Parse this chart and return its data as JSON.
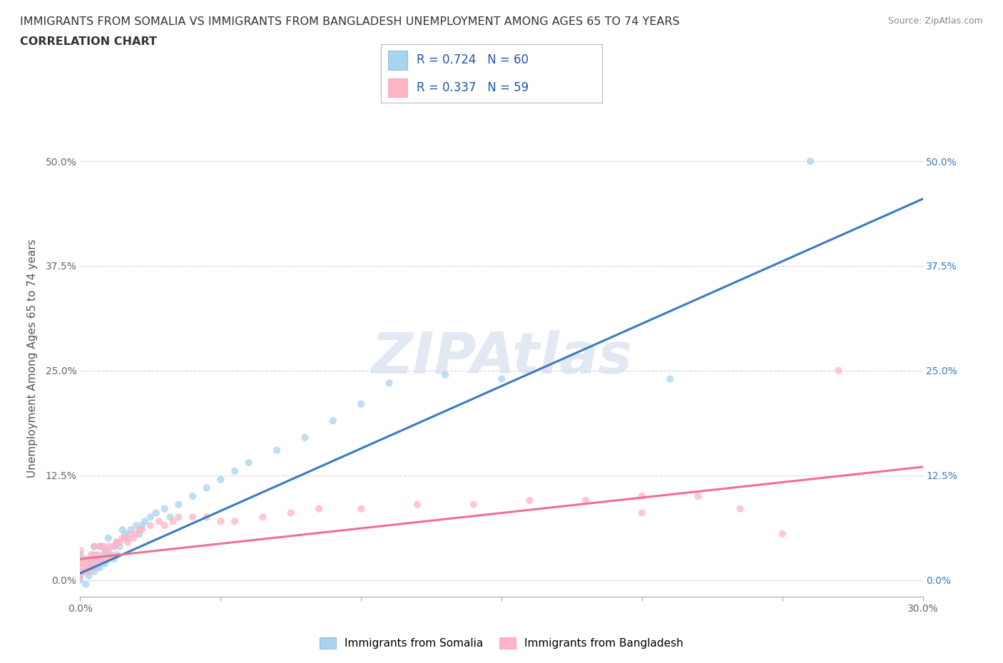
{
  "title_line1": "IMMIGRANTS FROM SOMALIA VS IMMIGRANTS FROM BANGLADESH UNEMPLOYMENT AMONG AGES 65 TO 74 YEARS",
  "title_line2": "CORRELATION CHART",
  "source_text": "Source: ZipAtlas.com",
  "ylabel": "Unemployment Among Ages 65 to 74 years",
  "xlim": [
    0.0,
    0.3
  ],
  "ylim": [
    -0.02,
    0.55
  ],
  "ytick_values": [
    0.0,
    0.125,
    0.25,
    0.375,
    0.5
  ],
  "ytick_labels": [
    "0.0%",
    "12.5%",
    "25.0%",
    "37.5%",
    "50.0%"
  ],
  "xtick_minor": [
    0.05,
    0.1,
    0.15,
    0.2,
    0.25
  ],
  "xtick_edge": [
    0.0,
    0.3
  ],
  "xtick_edge_labels": [
    "0.0%",
    "30.0%"
  ],
  "color_somalia": "#a8d4f0",
  "color_somalia_line": "#3a7bbf",
  "color_bangladesh": "#ffb3c6",
  "color_bangladesh_line": "#f07090",
  "R_somalia": 0.724,
  "N_somalia": 60,
  "R_bangladesh": 0.337,
  "N_bangladesh": 59,
  "legend_label_somalia": "Immigrants from Somalia",
  "legend_label_bangladesh": "Immigrants from Bangladesh",
  "watermark": "ZIPAtlas",
  "somalia_line_x": [
    0.0,
    0.3
  ],
  "somalia_line_y": [
    0.008,
    0.455
  ],
  "bangladesh_line_x": [
    0.0,
    0.3
  ],
  "bangladesh_line_y": [
    0.025,
    0.135
  ],
  "somalia_scatter_x": [
    0.0,
    0.0,
    0.0,
    0.0,
    0.0,
    0.002,
    0.002,
    0.003,
    0.003,
    0.003,
    0.004,
    0.004,
    0.005,
    0.005,
    0.005,
    0.005,
    0.006,
    0.006,
    0.007,
    0.007,
    0.007,
    0.008,
    0.008,
    0.009,
    0.009,
    0.01,
    0.01,
    0.01,
    0.012,
    0.012,
    0.013,
    0.013,
    0.014,
    0.015,
    0.016,
    0.017,
    0.018,
    0.02,
    0.021,
    0.022,
    0.023,
    0.025,
    0.027,
    0.03,
    0.032,
    0.035,
    0.04,
    0.045,
    0.05,
    0.055,
    0.06,
    0.07,
    0.08,
    0.09,
    0.1,
    0.11,
    0.13,
    0.15,
    0.21,
    0.26
  ],
  "somalia_scatter_y": [
    0.01,
    0.02,
    0.03,
    0.005,
    0.0,
    -0.005,
    0.01,
    0.015,
    0.02,
    0.005,
    0.015,
    0.025,
    0.01,
    0.02,
    0.03,
    0.04,
    0.015,
    0.025,
    0.015,
    0.025,
    0.04,
    0.02,
    0.03,
    0.02,
    0.035,
    0.025,
    0.035,
    0.05,
    0.025,
    0.04,
    0.03,
    0.045,
    0.04,
    0.06,
    0.055,
    0.05,
    0.06,
    0.065,
    0.055,
    0.065,
    0.07,
    0.075,
    0.08,
    0.085,
    0.075,
    0.09,
    0.1,
    0.11,
    0.12,
    0.13,
    0.14,
    0.155,
    0.17,
    0.19,
    0.21,
    0.235,
    0.245,
    0.24,
    0.24,
    0.5
  ],
  "bangladesh_scatter_x": [
    0.0,
    0.0,
    0.0,
    0.0,
    0.001,
    0.001,
    0.002,
    0.002,
    0.003,
    0.003,
    0.004,
    0.004,
    0.005,
    0.005,
    0.005,
    0.006,
    0.006,
    0.007,
    0.007,
    0.008,
    0.008,
    0.009,
    0.01,
    0.01,
    0.011,
    0.012,
    0.013,
    0.014,
    0.015,
    0.016,
    0.017,
    0.018,
    0.019,
    0.02,
    0.021,
    0.022,
    0.025,
    0.028,
    0.03,
    0.033,
    0.035,
    0.04,
    0.045,
    0.05,
    0.055,
    0.065,
    0.075,
    0.085,
    0.1,
    0.12,
    0.14,
    0.16,
    0.18,
    0.2,
    0.2,
    0.22,
    0.235,
    0.25,
    0.27
  ],
  "bangladesh_scatter_y": [
    0.015,
    0.025,
    0.035,
    0.005,
    0.01,
    0.02,
    0.015,
    0.025,
    0.01,
    0.02,
    0.015,
    0.03,
    0.015,
    0.025,
    0.04,
    0.02,
    0.03,
    0.025,
    0.04,
    0.025,
    0.04,
    0.035,
    0.03,
    0.04,
    0.03,
    0.04,
    0.045,
    0.045,
    0.05,
    0.05,
    0.045,
    0.055,
    0.05,
    0.055,
    0.06,
    0.06,
    0.065,
    0.07,
    0.065,
    0.07,
    0.075,
    0.075,
    0.075,
    0.07,
    0.07,
    0.075,
    0.08,
    0.085,
    0.085,
    0.09,
    0.09,
    0.095,
    0.095,
    0.1,
    0.08,
    0.1,
    0.085,
    0.055,
    0.25
  ]
}
